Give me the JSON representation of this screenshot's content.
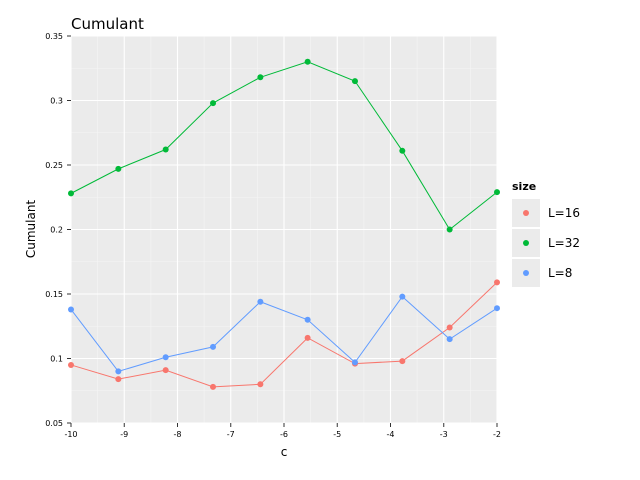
{
  "chart_data": {
    "type": "line",
    "title": "Cumulant",
    "xlabel": "c",
    "ylabel": "Cumulant",
    "xlim": [
      -10,
      -2
    ],
    "ylim": [
      0.05,
      0.35
    ],
    "x_ticks": [
      -10,
      -9,
      -8,
      -7,
      -6,
      -5,
      -4,
      -3,
      -2
    ],
    "x_tick_labels": [
      "-10",
      "-9",
      "-8",
      "-7",
      "-6",
      "-5",
      "-4",
      "-3",
      "-2"
    ],
    "y_ticks": [
      0.05,
      0.1,
      0.15,
      0.2,
      0.25,
      0.3,
      0.35
    ],
    "y_tick_labels": [
      "0.05",
      "0.1",
      "0.15",
      "0.2",
      "0.25",
      "0.3",
      "0.35"
    ],
    "grid": true,
    "legend": {
      "title": "size",
      "position": "right"
    },
    "x": [
      -10,
      -9.111,
      -8.222,
      -7.333,
      -6.444,
      -5.556,
      -4.667,
      -3.778,
      -2.889,
      -2
    ],
    "series": [
      {
        "name": "L=16",
        "color": "#F8766D",
        "values": [
          0.095,
          0.084,
          0.091,
          0.078,
          0.08,
          0.116,
          0.096,
          0.098,
          0.124,
          0.159
        ]
      },
      {
        "name": "L=32",
        "color": "#00BA38",
        "values": [
          0.228,
          0.247,
          0.262,
          0.298,
          0.318,
          0.33,
          0.315,
          0.261,
          0.2,
          0.229
        ]
      },
      {
        "name": "L=8",
        "color": "#619CFF",
        "values": [
          0.138,
          0.09,
          0.101,
          0.109,
          0.144,
          0.13,
          0.097,
          0.148,
          0.115,
          0.139
        ]
      }
    ]
  }
}
